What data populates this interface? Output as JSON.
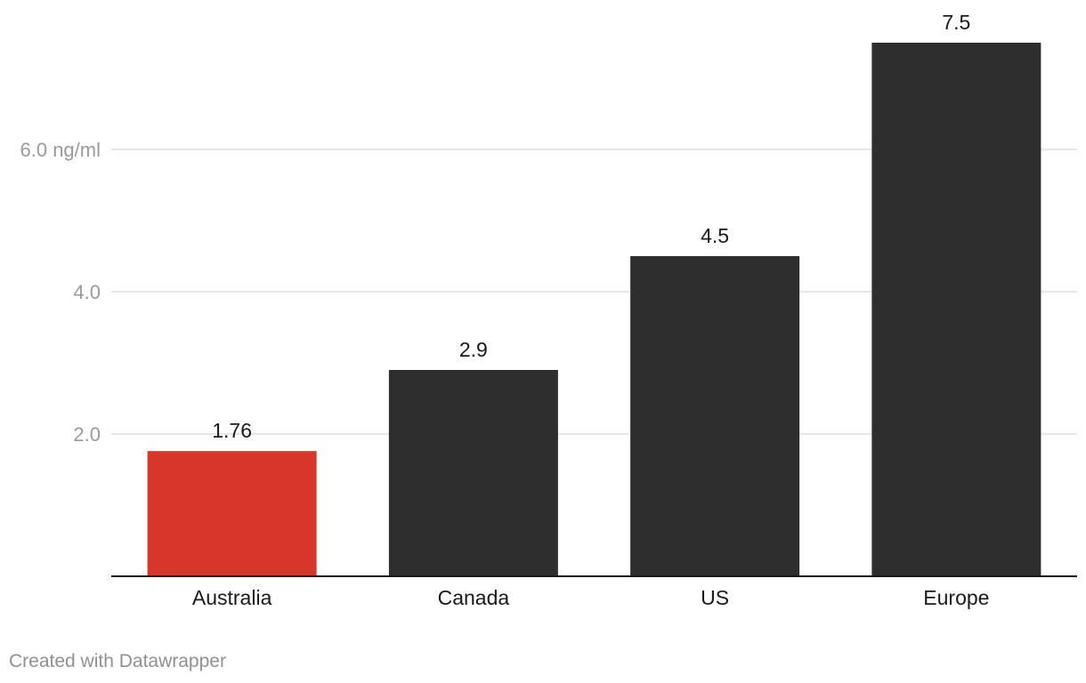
{
  "chart_data": {
    "type": "bar",
    "categories": [
      "Australia",
      "Canada",
      "US",
      "Europe"
    ],
    "values": [
      1.76,
      2.9,
      4.5,
      7.5
    ],
    "value_labels": [
      "1.76",
      "2.9",
      "4.5",
      "7.5"
    ],
    "ylim": [
      0,
      7.5
    ],
    "yticks": [
      {
        "value": 2,
        "label": "2.0"
      },
      {
        "value": 4,
        "label": "4.0"
      },
      {
        "value": 6,
        "label": "6.0 ng/ml"
      }
    ],
    "grid": true,
    "colors": {
      "highlight": "#d9362b",
      "default": "#2e2e2e",
      "grid": "#dedede",
      "tick_label": "#9a9a9a",
      "baseline": "#1a1a1a"
    },
    "highlight_index": 0
  },
  "footer": {
    "credit": "Created with Datawrapper"
  }
}
